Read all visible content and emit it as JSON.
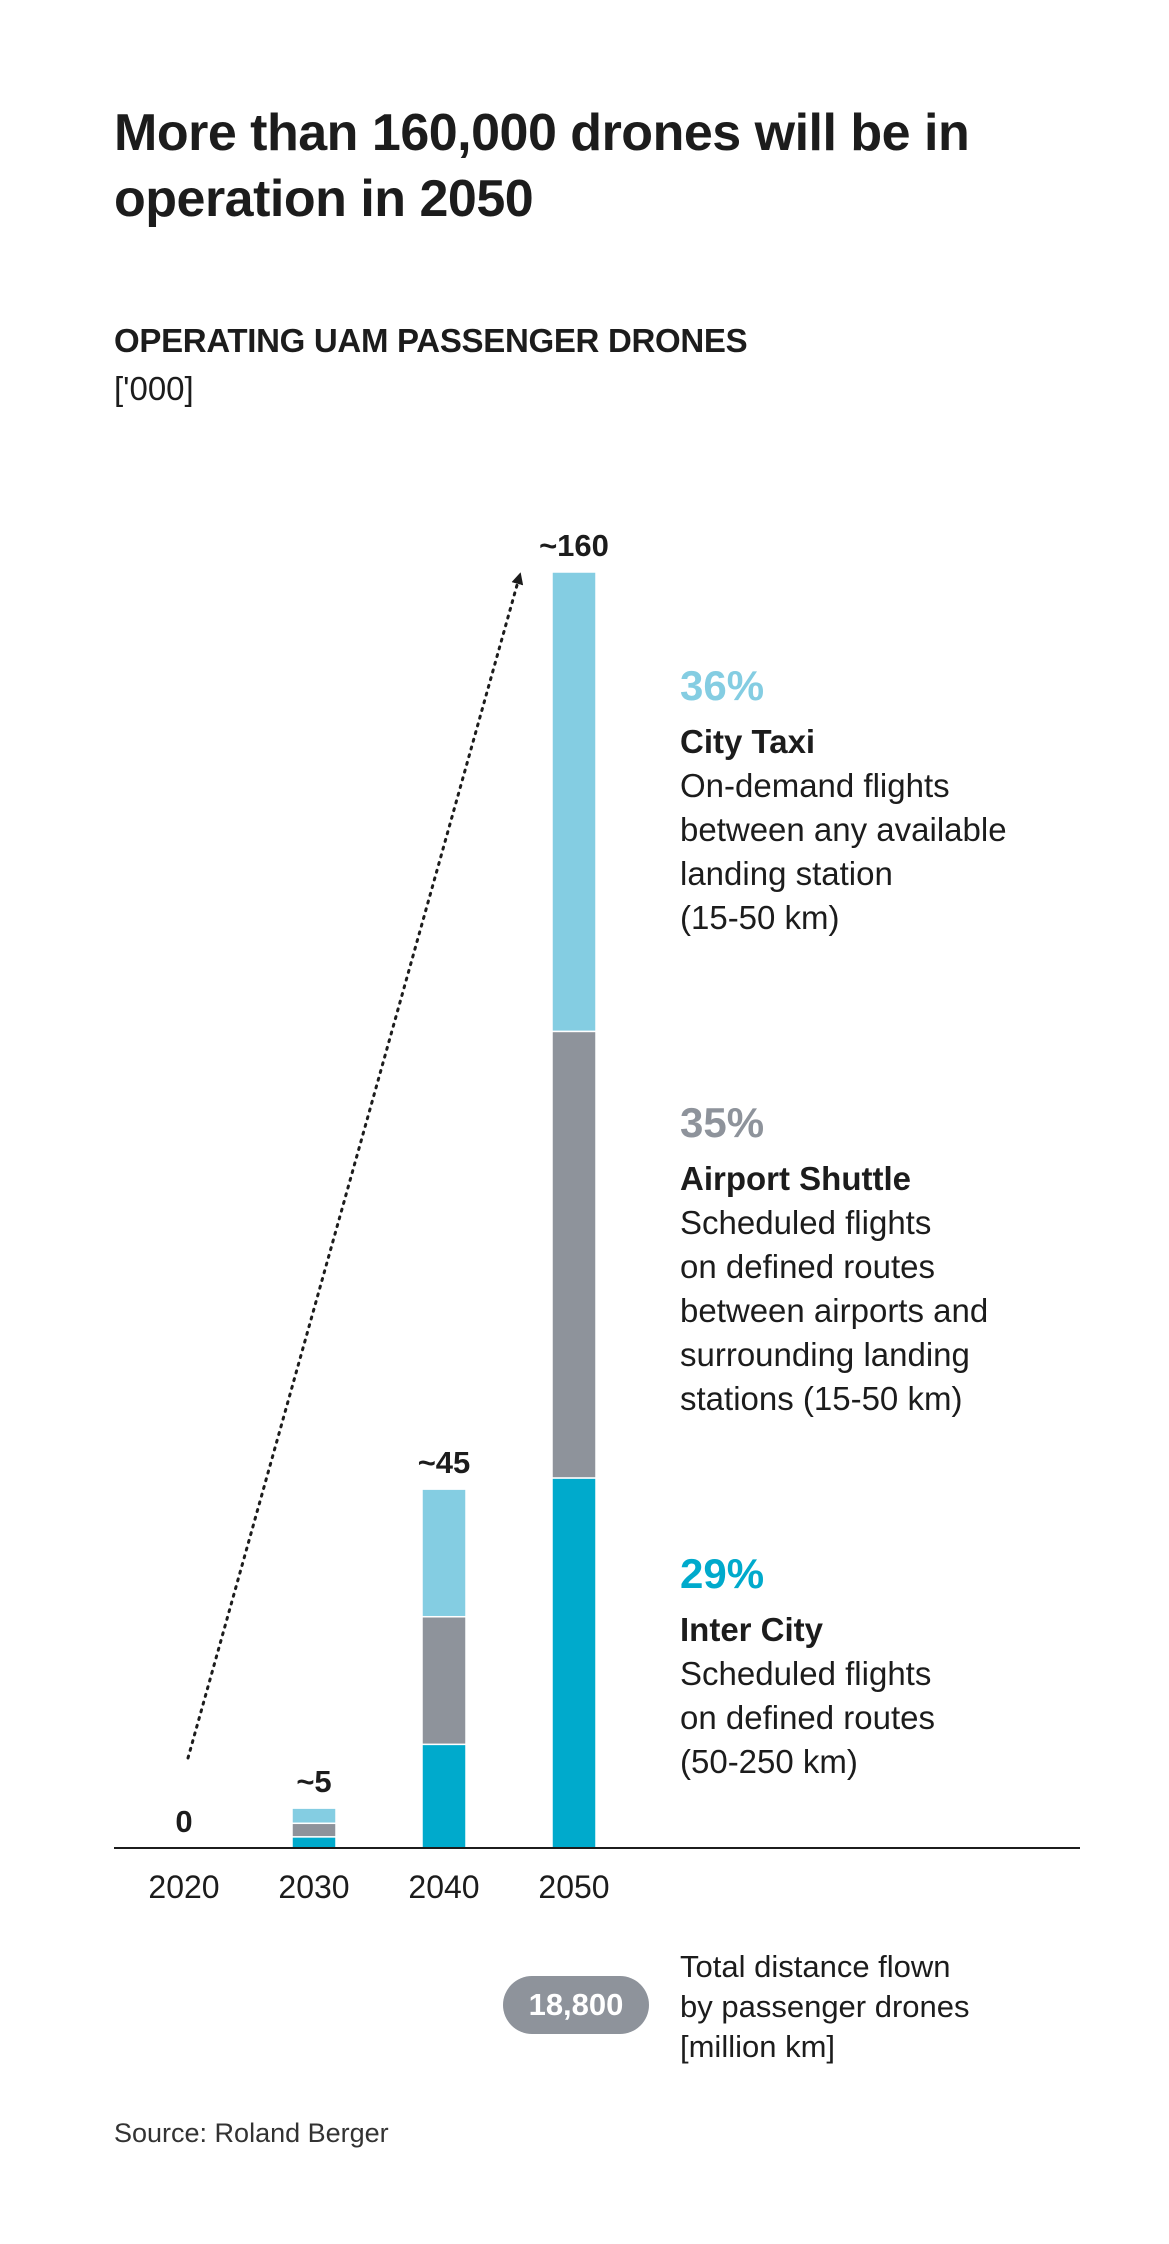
{
  "header": {
    "title": "More than 160,000 drones will be in operation in 2050",
    "subtitle": "OPERATING UAM PASSENGER DRONES",
    "unit": "['000]"
  },
  "chart_data": {
    "type": "bar",
    "stacked": true,
    "title": "OPERATING UAM PASSENGER DRONES",
    "ylabel": "['000]",
    "categories": [
      "2020",
      "2030",
      "2040",
      "2050"
    ],
    "totals": [
      0,
      5,
      45,
      160
    ],
    "total_labels": [
      "0",
      "~5",
      "~45",
      "~160"
    ],
    "series": [
      {
        "name": "Inter City",
        "color": "#00aacc",
        "values": [
          0,
          1.4,
          13,
          46.4
        ]
      },
      {
        "name": "Airport Shuttle",
        "color": "#8e939b",
        "values": [
          0,
          1.7,
          16,
          56
        ]
      },
      {
        "name": "City Taxi",
        "color": "#84cde2",
        "values": [
          0,
          1.9,
          16,
          57.6
        ]
      }
    ],
    "ylim": [
      0,
      160
    ],
    "grid": false,
    "trend_arrow": {
      "from": "2020",
      "to": "2050"
    }
  },
  "segments": [
    {
      "pct": "36%",
      "name": "City Taxi",
      "color": "#84cde2",
      "desc": "On-demand flights\nbetween any available\nlanding station\n(15-50 km)"
    },
    {
      "pct": "35%",
      "name": "Airport Shuttle",
      "color": "#8e939b",
      "desc": "Scheduled flights\non defined routes\nbetween airports and\nsurrounding landing\nstations (15-50 km)"
    },
    {
      "pct": "29%",
      "name": "Inter City",
      "color": "#00aacc",
      "desc": "Scheduled flights\non defined routes\n(50-250 km)"
    }
  ],
  "total_distance": {
    "value": "18,800",
    "label": "Total distance flown\nby passenger drones\n[million km]"
  },
  "source": "Source: Roland Berger"
}
